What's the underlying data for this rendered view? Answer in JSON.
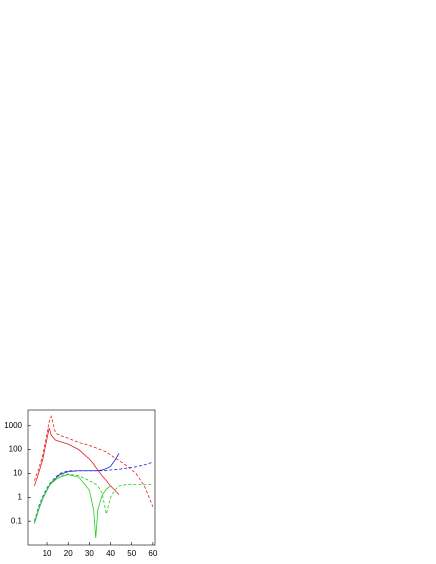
{
  "chart_data": {
    "type": "line",
    "log_scale": "y",
    "grid": false,
    "x": [
      4,
      6,
      8,
      10,
      11,
      12,
      14,
      16,
      20,
      25,
      30,
      32,
      33,
      34,
      36,
      38,
      40,
      42,
      44,
      48,
      52,
      56,
      60
    ],
    "xlim": [
      1,
      61
    ],
    "xticks": [
      10,
      20,
      30,
      40,
      50,
      60
    ],
    "ylim": [
      0.01,
      4600
    ],
    "yticks": [
      0.1,
      1,
      10,
      100,
      1000
    ],
    "series": [
      {
        "color": "#e02020",
        "dash": false,
        "values": [
          3,
          10,
          40,
          300,
          800,
          400,
          250,
          220,
          170,
          100,
          40,
          25,
          18,
          14,
          8,
          5,
          3,
          2,
          1.3,
          null,
          null,
          null,
          null
        ]
      },
      {
        "color": "#e02020",
        "dash": true,
        "values": [
          5,
          15,
          60,
          500,
          1500,
          2500,
          500,
          400,
          300,
          200,
          150,
          130,
          120,
          110,
          95,
          80,
          60,
          45,
          35,
          20,
          10,
          3,
          0.4
        ]
      },
      {
        "color": "#2020d0",
        "dash": false,
        "values": [
          0.08,
          0.3,
          0.9,
          2,
          3,
          4,
          6,
          9,
          12,
          13,
          13,
          13,
          13,
          13,
          14,
          16,
          20,
          35,
          70,
          null,
          null,
          null,
          null
        ]
      },
      {
        "color": "#2020d0",
        "dash": true,
        "values": [
          0.1,
          0.4,
          1.1,
          2.5,
          3.5,
          4.5,
          7,
          10,
          13,
          13,
          13,
          13,
          13,
          13,
          13,
          13.5,
          14,
          14.5,
          15,
          17,
          19,
          23,
          30
        ]
      },
      {
        "color": "#20d020",
        "dash": false,
        "values": [
          0.08,
          0.3,
          0.9,
          2,
          3,
          3.8,
          5.5,
          7,
          9,
          7,
          2,
          0.3,
          0.02,
          0.3,
          1.2,
          2.2,
          3,
          null,
          null,
          null,
          null,
          null,
          null
        ]
      },
      {
        "color": "#20d020",
        "dash": true,
        "values": [
          0.1,
          0.35,
          1,
          2.3,
          3.3,
          4.3,
          6.5,
          8,
          9.5,
          8,
          5,
          4,
          3.5,
          3,
          1.5,
          0.2,
          1,
          2,
          3,
          3.5,
          3.5,
          3.5,
          3.5
        ]
      }
    ]
  }
}
